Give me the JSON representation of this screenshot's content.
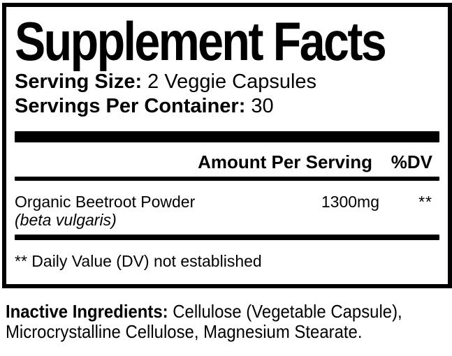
{
  "label": {
    "title": "Supplement Facts",
    "serving_size": {
      "label": "Serving Size:",
      "value": " 2 Veggie Capsules"
    },
    "servings_per_container": {
      "label": "Servings Per Container:",
      "value": " 30"
    },
    "header": {
      "amount": "Amount Per Serving",
      "dv": "%DV"
    },
    "rows": [
      {
        "name": "Organic Beetroot Powder",
        "name_sub": "(beta vulgaris)",
        "amount": "1300mg",
        "dv": "**"
      }
    ],
    "footnote": "** Daily Value (DV) not established"
  },
  "inactive_ingredients": {
    "label": "Inactive Ingredients:",
    "line1_rest": " Cellulose (Vegetable Capsule),",
    "line2": "Microcrystalline Cellulose, Magnesium Stearate."
  },
  "colors": {
    "ink": "#000000",
    "background": "#ffffff"
  }
}
